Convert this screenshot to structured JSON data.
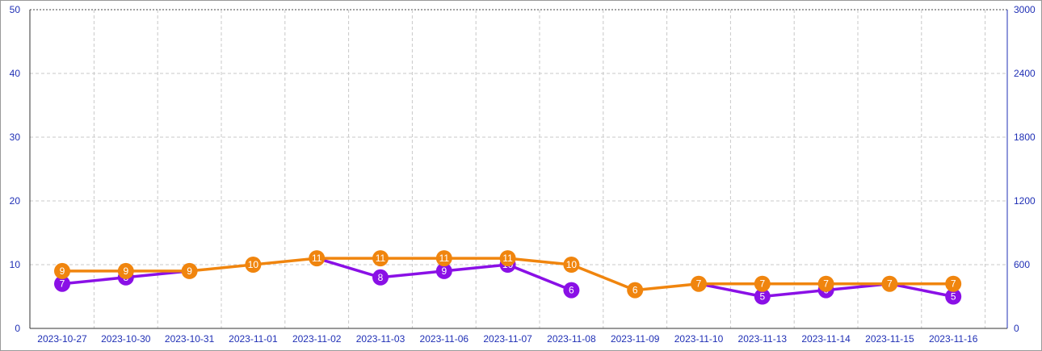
{
  "chart_data": {
    "type": "line",
    "title": "",
    "xlabel": "",
    "ylabel": "",
    "categories": [
      "2023-10-27",
      "2023-10-30",
      "2023-10-31",
      "2023-11-01",
      "2023-11-02",
      "2023-11-03",
      "2023-11-06",
      "2023-11-07",
      "2023-11-08",
      "2023-11-09",
      "2023-11-10",
      "2023-11-13",
      "2023-11-14",
      "2023-11-15",
      "2023-11-16"
    ],
    "y_left": {
      "min": 0,
      "max": 50,
      "ticks": [
        "0",
        "10",
        "20",
        "30",
        "40",
        "50"
      ]
    },
    "y_right": {
      "min": 0,
      "max": 3000,
      "ticks": [
        "0",
        "600",
        "1200",
        "1800",
        "2400",
        "3000"
      ]
    },
    "grid": true,
    "legend": "none",
    "series": [
      {
        "color": "#8a10e6",
        "values": [
          7,
          8,
          9,
          null,
          11,
          8,
          9,
          10,
          6,
          null,
          7,
          5,
          6,
          7,
          5
        ],
        "labels": [
          "7",
          "8",
          "",
          "",
          "",
          "8",
          "9",
          "10",
          "6",
          "",
          "",
          "5",
          "6",
          "",
          "5"
        ]
      },
      {
        "color": "#f0850e",
        "values": [
          9,
          9,
          9,
          10,
          11,
          11,
          11,
          11,
          10,
          6,
          7,
          7,
          7,
          7,
          7
        ],
        "labels": [
          "9",
          "9",
          "9",
          "10",
          "11",
          "11",
          "11",
          "11",
          "10",
          "6",
          "7",
          "7",
          "7",
          "7",
          "7"
        ]
      }
    ]
  }
}
